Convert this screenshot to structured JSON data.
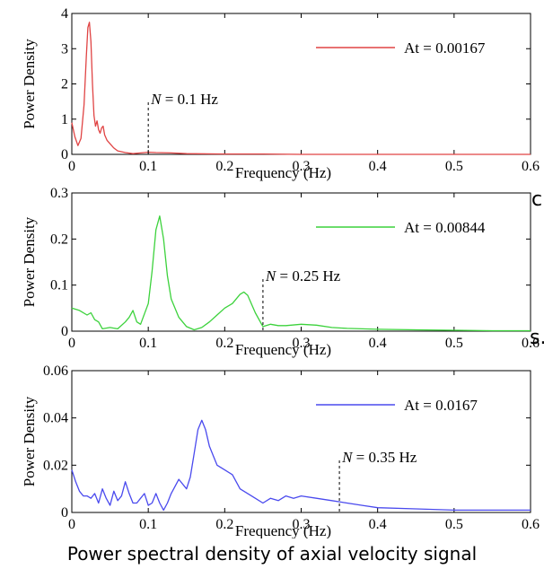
{
  "caption": "Power spectral density of axial velocity signal",
  "edge_fragments": [
    "c",
    "s."
  ],
  "chart_data": [
    {
      "type": "line",
      "xlabel": "Frequency (Hz)",
      "ylabel": "Power Density",
      "xlim": [
        0,
        0.6
      ],
      "ylim": [
        0,
        4
      ],
      "xticks": [
        "0",
        "0.1",
        "0.2",
        "0.3",
        "0.4",
        "0.5",
        "0.6"
      ],
      "yticks": [
        "0",
        "1",
        "2",
        "3",
        "4"
      ],
      "grid": false,
      "legend_position": "top-right",
      "annotation": {
        "italic": "N",
        "text": " = 0.1 Hz",
        "x": 0.1
      },
      "series": [
        {
          "name": "At = 0.00167",
          "color": "#e04444",
          "x": [
            0,
            0.004,
            0.008,
            0.012,
            0.016,
            0.019,
            0.021,
            0.023,
            0.025,
            0.027,
            0.029,
            0.031,
            0.033,
            0.035,
            0.037,
            0.039,
            0.041,
            0.043,
            0.046,
            0.05,
            0.055,
            0.06,
            0.07,
            0.08,
            0.09,
            0.1,
            0.11,
            0.13,
            0.15,
            0.2,
            0.25,
            0.3,
            0.4,
            0.5,
            0.6
          ],
          "y": [
            0.9,
            0.5,
            0.25,
            0.45,
            1.4,
            2.8,
            3.6,
            3.75,
            3.2,
            2.0,
            1.1,
            0.8,
            0.95,
            0.7,
            0.6,
            0.75,
            0.8,
            0.55,
            0.4,
            0.3,
            0.18,
            0.1,
            0.05,
            0.02,
            0.04,
            0.06,
            0.05,
            0.04,
            0.02,
            0.01,
            0.01,
            0.0,
            0.0,
            0.0,
            0.0
          ]
        }
      ]
    },
    {
      "type": "line",
      "xlabel": "Frequency (Hz)",
      "ylabel": "Power Density",
      "xlim": [
        0,
        0.6
      ],
      "ylim": [
        0,
        0.3
      ],
      "xticks": [
        "0",
        "0.1",
        "0.2",
        "0.3",
        "0.4",
        "0.5",
        "0.6"
      ],
      "yticks": [
        "0",
        "0.1",
        "0.2",
        "0.3"
      ],
      "grid": false,
      "legend_position": "top-right",
      "annotation": {
        "italic": "N",
        "text": " = 0.25 Hz",
        "x": 0.25
      },
      "series": [
        {
          "name": "At = 0.00844",
          "color": "#3cd23c",
          "x": [
            0,
            0.01,
            0.02,
            0.025,
            0.03,
            0.035,
            0.04,
            0.05,
            0.06,
            0.07,
            0.075,
            0.08,
            0.085,
            0.09,
            0.1,
            0.105,
            0.11,
            0.115,
            0.12,
            0.125,
            0.13,
            0.14,
            0.15,
            0.16,
            0.17,
            0.18,
            0.19,
            0.2,
            0.21,
            0.22,
            0.225,
            0.23,
            0.24,
            0.25,
            0.26,
            0.27,
            0.28,
            0.3,
            0.32,
            0.34,
            0.36,
            0.4,
            0.45,
            0.5,
            0.55,
            0.6
          ],
          "y": [
            0.05,
            0.045,
            0.035,
            0.04,
            0.025,
            0.02,
            0.005,
            0.008,
            0.005,
            0.02,
            0.03,
            0.045,
            0.02,
            0.015,
            0.06,
            0.13,
            0.22,
            0.25,
            0.2,
            0.12,
            0.07,
            0.03,
            0.01,
            0.003,
            0.008,
            0.02,
            0.035,
            0.05,
            0.06,
            0.08,
            0.085,
            0.078,
            0.04,
            0.01,
            0.015,
            0.012,
            0.012,
            0.015,
            0.013,
            0.008,
            0.006,
            0.004,
            0.003,
            0.002,
            0.001,
            0.001
          ]
        }
      ]
    },
    {
      "type": "line",
      "xlabel": "Frequency (Hz)",
      "ylabel": "Power Density",
      "xlim": [
        0,
        0.6
      ],
      "ylim": [
        0,
        0.06
      ],
      "xticks": [
        "0",
        "0.1",
        "0.2",
        "0.3",
        "0.4",
        "0.5",
        "0.6"
      ],
      "yticks": [
        "0",
        "0.02",
        "0.04",
        "0.06"
      ],
      "grid": false,
      "legend_position": "top-right",
      "annotation": {
        "italic": "N",
        "text": " = 0.35 Hz",
        "x": 0.35
      },
      "series": [
        {
          "name": "At = 0.0167",
          "color": "#4a4aee",
          "x": [
            0,
            0.005,
            0.01,
            0.015,
            0.02,
            0.025,
            0.03,
            0.035,
            0.04,
            0.045,
            0.05,
            0.055,
            0.06,
            0.065,
            0.07,
            0.075,
            0.08,
            0.085,
            0.09,
            0.095,
            0.1,
            0.105,
            0.11,
            0.115,
            0.12,
            0.125,
            0.13,
            0.14,
            0.15,
            0.155,
            0.16,
            0.165,
            0.17,
            0.175,
            0.18,
            0.19,
            0.2,
            0.21,
            0.22,
            0.23,
            0.24,
            0.25,
            0.26,
            0.27,
            0.28,
            0.29,
            0.3,
            0.32,
            0.34,
            0.36,
            0.38,
            0.4,
            0.45,
            0.5,
            0.55,
            0.6
          ],
          "y": [
            0.018,
            0.013,
            0.009,
            0.007,
            0.007,
            0.006,
            0.008,
            0.004,
            0.01,
            0.006,
            0.003,
            0.009,
            0.005,
            0.007,
            0.013,
            0.008,
            0.004,
            0.004,
            0.006,
            0.008,
            0.003,
            0.004,
            0.008,
            0.004,
            0.001,
            0.004,
            0.008,
            0.014,
            0.01,
            0.015,
            0.025,
            0.035,
            0.039,
            0.035,
            0.028,
            0.02,
            0.018,
            0.016,
            0.01,
            0.008,
            0.006,
            0.004,
            0.006,
            0.005,
            0.007,
            0.006,
            0.007,
            0.006,
            0.005,
            0.004,
            0.003,
            0.002,
            0.0015,
            0.001,
            0.001,
            0.001
          ]
        }
      ]
    }
  ]
}
